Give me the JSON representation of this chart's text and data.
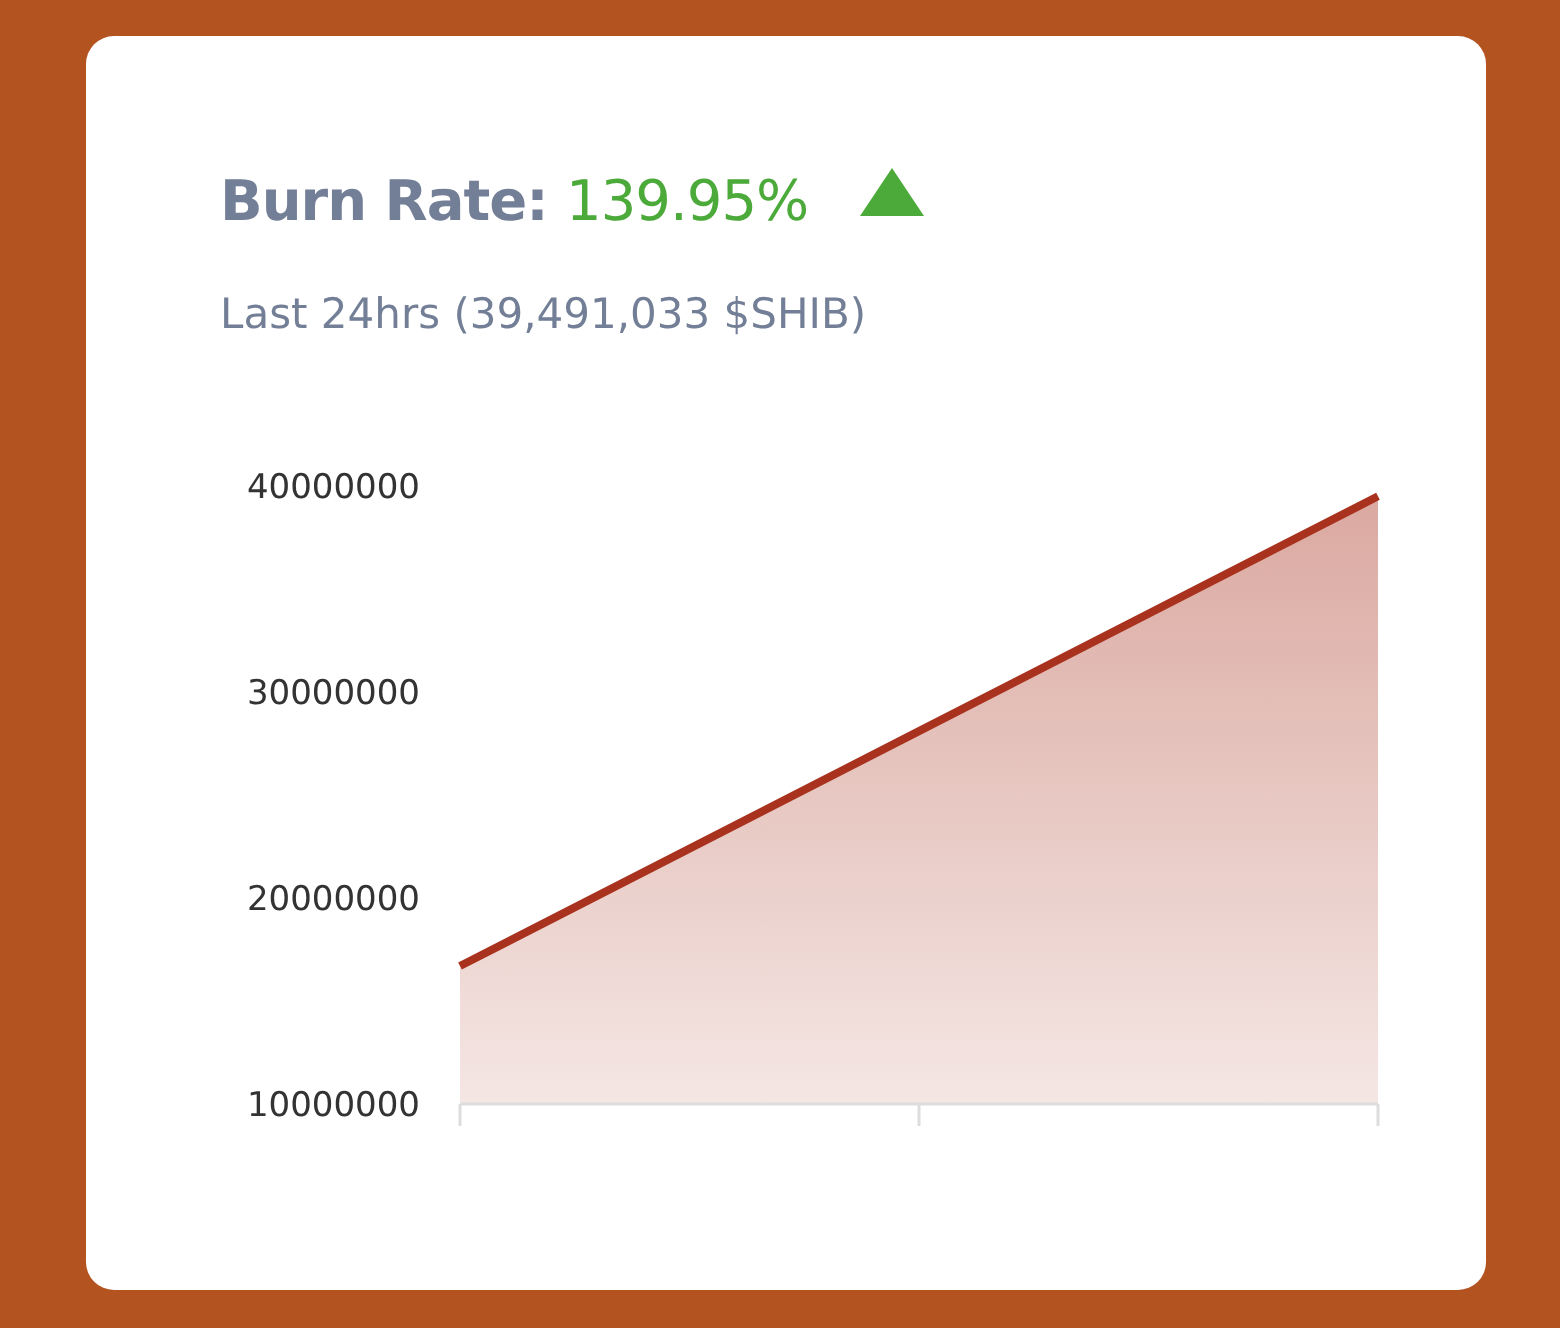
{
  "chart_data": {
    "type": "area",
    "title": "Burn Rate: 139.95%",
    "subtitle": "Last 24hrs (39,491,033 $SHIB)",
    "categories": [
      null,
      null,
      null
    ],
    "series": [
      {
        "color": "#a8321e",
        "values": [
          16700000,
          28100000,
          39500000
        ]
      }
    ],
    "ylim": [
      10000000,
      40000000
    ],
    "yticks": [
      10000000,
      20000000,
      30000000,
      40000000
    ],
    "grid": false
  }
}
